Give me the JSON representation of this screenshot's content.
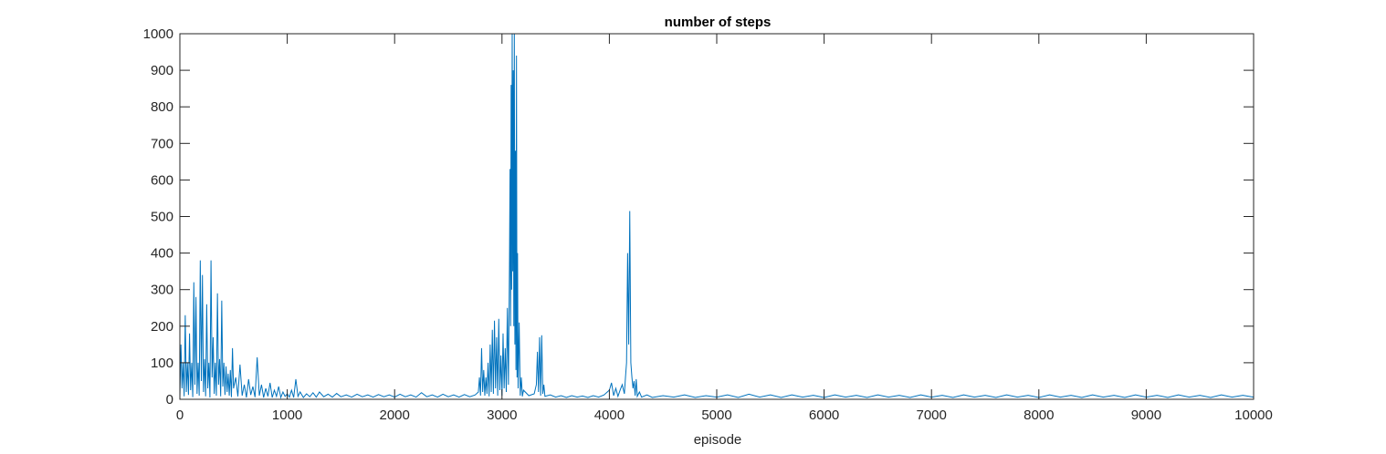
{
  "chart_data": {
    "type": "line",
    "title": "number of steps",
    "xlabel": "episode",
    "ylabel": "",
    "xlim": [
      0,
      10000
    ],
    "ylim": [
      0,
      1000
    ],
    "xticks": [
      0,
      1000,
      2000,
      3000,
      4000,
      5000,
      6000,
      7000,
      8000,
      9000,
      10000
    ],
    "yticks": [
      0,
      100,
      200,
      300,
      400,
      500,
      600,
      700,
      800,
      900,
      1000
    ],
    "grid": false,
    "legend": "none",
    "series_color": "#0072BD",
    "series": [
      {
        "points": [
          [
            0,
            5
          ],
          [
            10,
            150
          ],
          [
            20,
            30
          ],
          [
            30,
            100
          ],
          [
            40,
            8
          ],
          [
            50,
            230
          ],
          [
            60,
            20
          ],
          [
            70,
            100
          ],
          [
            80,
            12
          ],
          [
            90,
            180
          ],
          [
            100,
            25
          ],
          [
            110,
            100
          ],
          [
            120,
            6
          ],
          [
            130,
            320
          ],
          [
            140,
            40
          ],
          [
            150,
            280
          ],
          [
            160,
            15
          ],
          [
            170,
            100
          ],
          [
            180,
            10
          ],
          [
            190,
            380
          ],
          [
            200,
            50
          ],
          [
            210,
            340
          ],
          [
            220,
            20
          ],
          [
            230,
            110
          ],
          [
            240,
            8
          ],
          [
            250,
            260
          ],
          [
            260,
            30
          ],
          [
            270,
            100
          ],
          [
            280,
            5
          ],
          [
            290,
            380
          ],
          [
            300,
            60
          ],
          [
            310,
            170
          ],
          [
            320,
            15
          ],
          [
            330,
            100
          ],
          [
            340,
            10
          ],
          [
            350,
            290
          ],
          [
            360,
            40
          ],
          [
            370,
            110
          ],
          [
            380,
            8
          ],
          [
            390,
            270
          ],
          [
            400,
            35
          ],
          [
            410,
            100
          ],
          [
            420,
            12
          ],
          [
            430,
            90
          ],
          [
            440,
            20
          ],
          [
            450,
            70
          ],
          [
            460,
            10
          ],
          [
            470,
            80
          ],
          [
            480,
            6
          ],
          [
            490,
            140
          ],
          [
            500,
            30
          ],
          [
            520,
            60
          ],
          [
            540,
            8
          ],
          [
            560,
            95
          ],
          [
            580,
            10
          ],
          [
            600,
            40
          ],
          [
            620,
            5
          ],
          [
            640,
            55
          ],
          [
            660,
            12
          ],
          [
            680,
            35
          ],
          [
            700,
            6
          ],
          [
            720,
            115
          ],
          [
            740,
            10
          ],
          [
            760,
            40
          ],
          [
            780,
            5
          ],
          [
            800,
            30
          ],
          [
            820,
            8
          ],
          [
            840,
            45
          ],
          [
            860,
            5
          ],
          [
            880,
            25
          ],
          [
            900,
            8
          ],
          [
            920,
            35
          ],
          [
            940,
            5
          ],
          [
            960,
            20
          ],
          [
            980,
            8
          ],
          [
            1000,
            15
          ],
          [
            1020,
            6
          ],
          [
            1040,
            25
          ],
          [
            1060,
            5
          ],
          [
            1080,
            55
          ],
          [
            1100,
            8
          ],
          [
            1120,
            20
          ],
          [
            1150,
            5
          ],
          [
            1180,
            15
          ],
          [
            1210,
            7
          ],
          [
            1240,
            18
          ],
          [
            1270,
            6
          ],
          [
            1300,
            20
          ],
          [
            1340,
            7
          ],
          [
            1380,
            14
          ],
          [
            1420,
            6
          ],
          [
            1460,
            16
          ],
          [
            1500,
            7
          ],
          [
            1550,
            12
          ],
          [
            1600,
            6
          ],
          [
            1650,
            14
          ],
          [
            1700,
            7
          ],
          [
            1750,
            12
          ],
          [
            1800,
            6
          ],
          [
            1850,
            13
          ],
          [
            1900,
            7
          ],
          [
            1950,
            12
          ],
          [
            2000,
            6
          ],
          [
            2050,
            14
          ],
          [
            2100,
            7
          ],
          [
            2150,
            12
          ],
          [
            2200,
            6
          ],
          [
            2250,
            18
          ],
          [
            2300,
            7
          ],
          [
            2350,
            12
          ],
          [
            2400,
            6
          ],
          [
            2450,
            14
          ],
          [
            2500,
            7
          ],
          [
            2550,
            12
          ],
          [
            2600,
            6
          ],
          [
            2650,
            13
          ],
          [
            2700,
            7
          ],
          [
            2750,
            12
          ],
          [
            2780,
            20
          ],
          [
            2790,
            60
          ],
          [
            2800,
            10
          ],
          [
            2810,
            140
          ],
          [
            2820,
            20
          ],
          [
            2830,
            80
          ],
          [
            2840,
            10
          ],
          [
            2850,
            60
          ],
          [
            2860,
            15
          ],
          [
            2870,
            100
          ],
          [
            2880,
            8
          ],
          [
            2890,
            150
          ],
          [
            2900,
            20
          ],
          [
            2910,
            190
          ],
          [
            2920,
            15
          ],
          [
            2930,
            215
          ],
          [
            2940,
            30
          ],
          [
            2950,
            170
          ],
          [
            2960,
            10
          ],
          [
            2970,
            220
          ],
          [
            2980,
            25
          ],
          [
            2990,
            120
          ],
          [
            3000,
            10
          ],
          [
            3010,
            180
          ],
          [
            3020,
            30
          ],
          [
            3030,
            140
          ],
          [
            3040,
            20
          ],
          [
            3050,
            250
          ],
          [
            3060,
            40
          ],
          [
            3070,
            380
          ],
          [
            3075,
            630
          ],
          [
            3080,
            200
          ],
          [
            3085,
            860
          ],
          [
            3090,
            300
          ],
          [
            3095,
            1000
          ],
          [
            3100,
            350
          ],
          [
            3105,
            900
          ],
          [
            3110,
            200
          ],
          [
            3115,
            1000
          ],
          [
            3120,
            150
          ],
          [
            3125,
            680
          ],
          [
            3130,
            80
          ],
          [
            3135,
            940
          ],
          [
            3140,
            60
          ],
          [
            3145,
            400
          ],
          [
            3150,
            30
          ],
          [
            3160,
            210
          ],
          [
            3170,
            10
          ],
          [
            3180,
            60
          ],
          [
            3190,
            8
          ],
          [
            3200,
            25
          ],
          [
            3250,
            10
          ],
          [
            3300,
            15
          ],
          [
            3320,
            40
          ],
          [
            3330,
            130
          ],
          [
            3340,
            20
          ],
          [
            3350,
            170
          ],
          [
            3360,
            10
          ],
          [
            3370,
            175
          ],
          [
            3380,
            15
          ],
          [
            3390,
            40
          ],
          [
            3400,
            8
          ],
          [
            3450,
            12
          ],
          [
            3500,
            6
          ],
          [
            3550,
            10
          ],
          [
            3600,
            5
          ],
          [
            3650,
            10
          ],
          [
            3700,
            6
          ],
          [
            3750,
            9
          ],
          [
            3800,
            5
          ],
          [
            3850,
            10
          ],
          [
            3900,
            6
          ],
          [
            3950,
            12
          ],
          [
            4000,
            25
          ],
          [
            4020,
            45
          ],
          [
            4040,
            10
          ],
          [
            4060,
            30
          ],
          [
            4080,
            8
          ],
          [
            4100,
            25
          ],
          [
            4120,
            40
          ],
          [
            4140,
            15
          ],
          [
            4150,
            60
          ],
          [
            4160,
            100
          ],
          [
            4170,
            400
          ],
          [
            4180,
            150
          ],
          [
            4190,
            515
          ],
          [
            4200,
            100
          ],
          [
            4210,
            60
          ],
          [
            4220,
            30
          ],
          [
            4230,
            50
          ],
          [
            4240,
            10
          ],
          [
            4250,
            55
          ],
          [
            4260,
            8
          ],
          [
            4280,
            20
          ],
          [
            4300,
            6
          ],
          [
            4350,
            12
          ],
          [
            4400,
            5
          ],
          [
            4500,
            10
          ],
          [
            4600,
            6
          ],
          [
            4700,
            12
          ],
          [
            4800,
            5
          ],
          [
            4900,
            10
          ],
          [
            5000,
            6
          ],
          [
            5100,
            12
          ],
          [
            5200,
            5
          ],
          [
            5300,
            14
          ],
          [
            5400,
            6
          ],
          [
            5500,
            12
          ],
          [
            5600,
            5
          ],
          [
            5700,
            12
          ],
          [
            5800,
            6
          ],
          [
            5900,
            11
          ],
          [
            6000,
            5
          ],
          [
            6100,
            12
          ],
          [
            6200,
            6
          ],
          [
            6300,
            11
          ],
          [
            6400,
            5
          ],
          [
            6500,
            12
          ],
          [
            6600,
            6
          ],
          [
            6700,
            11
          ],
          [
            6800,
            5
          ],
          [
            6900,
            12
          ],
          [
            7000,
            6
          ],
          [
            7100,
            11
          ],
          [
            7200,
            5
          ],
          [
            7300,
            12
          ],
          [
            7400,
            6
          ],
          [
            7500,
            11
          ],
          [
            7600,
            5
          ],
          [
            7700,
            12
          ],
          [
            7800,
            6
          ],
          [
            7900,
            11
          ],
          [
            8000,
            5
          ],
          [
            8100,
            12
          ],
          [
            8200,
            6
          ],
          [
            8300,
            11
          ],
          [
            8400,
            5
          ],
          [
            8500,
            12
          ],
          [
            8600,
            6
          ],
          [
            8700,
            11
          ],
          [
            8800,
            5
          ],
          [
            8900,
            12
          ],
          [
            9000,
            6
          ],
          [
            9100,
            11
          ],
          [
            9200,
            5
          ],
          [
            9300,
            12
          ],
          [
            9400,
            6
          ],
          [
            9500,
            11
          ],
          [
            9600,
            5
          ],
          [
            9700,
            12
          ],
          [
            9800,
            6
          ],
          [
            9900,
            11
          ],
          [
            10000,
            6
          ]
        ]
      }
    ]
  }
}
